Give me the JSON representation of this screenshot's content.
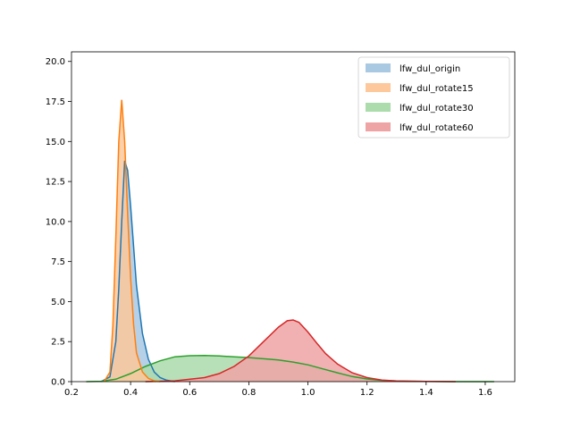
{
  "chart_data": {
    "type": "area",
    "title": "",
    "xlabel": "",
    "ylabel": "",
    "xlim": [
      0.2,
      1.7
    ],
    "ylim": [
      0,
      20.6
    ],
    "x_ticks": [
      0.2,
      0.4,
      0.6,
      0.8,
      1.0,
      1.2,
      1.4,
      1.6
    ],
    "x_tick_labels": [
      "0.2",
      "0.4",
      "0.6",
      "0.8",
      "1.0",
      "1.2",
      "1.4",
      "1.6"
    ],
    "y_ticks": [
      0,
      2.5,
      5,
      7.5,
      10,
      12.5,
      15,
      17.5,
      20
    ],
    "y_tick_labels": [
      "0.0",
      "2.5",
      "5.0",
      "7.5",
      "10.0",
      "12.5",
      "15.0",
      "17.5",
      "20.0"
    ],
    "grid": false,
    "legend_position": "top-right",
    "series": [
      {
        "name": "lfw_dul_origin",
        "color": "#1f77b4",
        "fill": "#a9c9e3",
        "x": [
          0.3,
          0.33,
          0.35,
          0.36,
          0.37,
          0.38,
          0.39,
          0.4,
          0.41,
          0.42,
          0.44,
          0.46,
          0.48,
          0.5,
          0.52,
          0.55
        ],
        "y": [
          0.0,
          0.3,
          2.5,
          5.8,
          10.0,
          13.8,
          13.2,
          11.0,
          8.5,
          6.0,
          3.0,
          1.4,
          0.6,
          0.25,
          0.1,
          0.0
        ]
      },
      {
        "name": "lfw_dul_rotate15",
        "color": "#ff7f0e",
        "fill": "#fdc89b",
        "x": [
          0.31,
          0.33,
          0.34,
          0.35,
          0.36,
          0.37,
          0.38,
          0.39,
          0.4,
          0.41,
          0.42,
          0.44,
          0.46,
          0.48,
          0.5
        ],
        "y": [
          0.0,
          0.6,
          3.5,
          9.0,
          15.0,
          17.6,
          15.0,
          10.5,
          6.5,
          3.6,
          1.8,
          0.6,
          0.2,
          0.05,
          0.0
        ]
      },
      {
        "name": "lfw_dul_rotate30",
        "color": "#2ca02c",
        "fill": "#acdbac",
        "x": [
          0.25,
          0.3,
          0.35,
          0.4,
          0.45,
          0.5,
          0.55,
          0.6,
          0.65,
          0.7,
          0.75,
          0.8,
          0.85,
          0.9,
          0.95,
          1.0,
          1.05,
          1.1,
          1.15,
          1.2,
          1.25,
          1.3,
          1.35,
          1.4,
          1.5,
          1.63
        ],
        "y": [
          0.0,
          0.02,
          0.15,
          0.5,
          0.95,
          1.3,
          1.55,
          1.62,
          1.63,
          1.6,
          1.55,
          1.5,
          1.43,
          1.35,
          1.22,
          1.05,
          0.8,
          0.55,
          0.32,
          0.17,
          0.08,
          0.04,
          0.02,
          0.01,
          0.0,
          0.0
        ]
      },
      {
        "name": "lfw_dul_rotate60",
        "color": "#d62728",
        "fill": "#eea3a4",
        "x": [
          0.45,
          0.55,
          0.65,
          0.7,
          0.75,
          0.8,
          0.85,
          0.9,
          0.93,
          0.95,
          0.97,
          1.0,
          1.03,
          1.06,
          1.1,
          1.15,
          1.2,
          1.25,
          1.3,
          1.4,
          1.5
        ],
        "y": [
          0.0,
          0.05,
          0.25,
          0.5,
          0.95,
          1.6,
          2.5,
          3.4,
          3.8,
          3.85,
          3.7,
          3.1,
          2.4,
          1.75,
          1.1,
          0.55,
          0.25,
          0.1,
          0.04,
          0.01,
          0.0
        ]
      }
    ]
  }
}
